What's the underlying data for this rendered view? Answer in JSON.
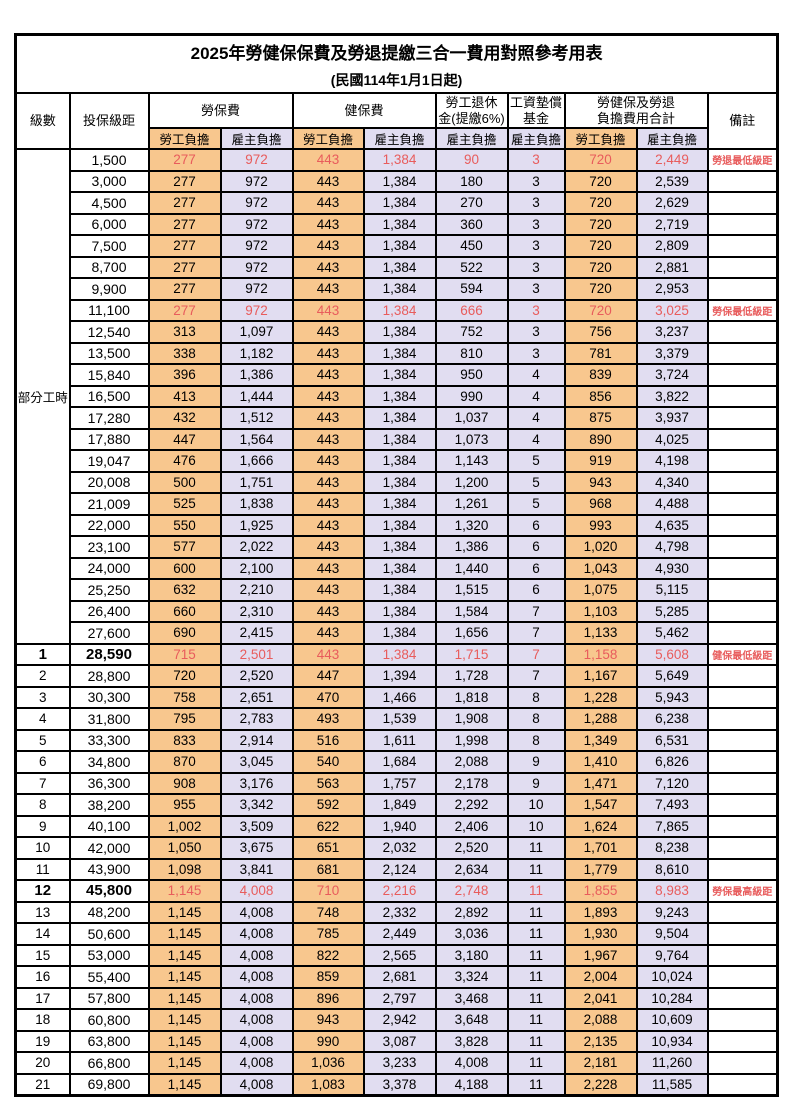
{
  "title": "2025年勞健保保費及勞退提繳三合一費用對照參考用表",
  "subtitle": "(民國114年1月1日起)",
  "colors": {
    "employee_column_bg": "#F8C78E",
    "employer_column_bg": "#E1DDF1",
    "highlight_text": "#E85C5C",
    "remark_text": "#F17577",
    "border": "#000000"
  },
  "header": {
    "level": "級數",
    "bracket": "投保級距",
    "labor_insurance": "勞保費",
    "health_insurance": "健保費",
    "pension_line1": "勞工退休",
    "pension_line2": "金(提繳6%)",
    "wage_fund_line1": "工資墊償",
    "wage_fund_line2": "基金",
    "total_line1": "勞健保及勞退",
    "total_line2": "負擔費用合計",
    "remark": "備註",
    "employee": "勞工負擔",
    "employer": "雇主負擔"
  },
  "part_time": {
    "label": "部分工時",
    "rowspan": 23
  },
  "rows": [
    {
      "bracket": "1,500",
      "values": [
        "277",
        "972",
        "443",
        "1,384",
        "90",
        "3",
        "720",
        "2,449"
      ],
      "remark": "勞退最低級距",
      "highlight": true
    },
    {
      "bracket": "3,000",
      "values": [
        "277",
        "972",
        "443",
        "1,384",
        "180",
        "3",
        "720",
        "2,539"
      ],
      "remark": ""
    },
    {
      "bracket": "4,500",
      "values": [
        "277",
        "972",
        "443",
        "1,384",
        "270",
        "3",
        "720",
        "2,629"
      ],
      "remark": ""
    },
    {
      "bracket": "6,000",
      "values": [
        "277",
        "972",
        "443",
        "1,384",
        "360",
        "3",
        "720",
        "2,719"
      ],
      "remark": ""
    },
    {
      "bracket": "7,500",
      "values": [
        "277",
        "972",
        "443",
        "1,384",
        "450",
        "3",
        "720",
        "2,809"
      ],
      "remark": ""
    },
    {
      "bracket": "8,700",
      "values": [
        "277",
        "972",
        "443",
        "1,384",
        "522",
        "3",
        "720",
        "2,881"
      ],
      "remark": ""
    },
    {
      "bracket": "9,900",
      "values": [
        "277",
        "972",
        "443",
        "1,384",
        "594",
        "3",
        "720",
        "2,953"
      ],
      "remark": ""
    },
    {
      "bracket": "11,100",
      "values": [
        "277",
        "972",
        "443",
        "1,384",
        "666",
        "3",
        "720",
        "3,025"
      ],
      "remark": "勞保最低級距",
      "highlight": true
    },
    {
      "bracket": "12,540",
      "values": [
        "313",
        "1,097",
        "443",
        "1,384",
        "752",
        "3",
        "756",
        "3,237"
      ],
      "remark": ""
    },
    {
      "bracket": "13,500",
      "values": [
        "338",
        "1,182",
        "443",
        "1,384",
        "810",
        "3",
        "781",
        "3,379"
      ],
      "remark": ""
    },
    {
      "bracket": "15,840",
      "values": [
        "396",
        "1,386",
        "443",
        "1,384",
        "950",
        "4",
        "839",
        "3,724"
      ],
      "remark": ""
    },
    {
      "bracket": "16,500",
      "values": [
        "413",
        "1,444",
        "443",
        "1,384",
        "990",
        "4",
        "856",
        "3,822"
      ],
      "remark": ""
    },
    {
      "bracket": "17,280",
      "values": [
        "432",
        "1,512",
        "443",
        "1,384",
        "1,037",
        "4",
        "875",
        "3,937"
      ],
      "remark": ""
    },
    {
      "bracket": "17,880",
      "values": [
        "447",
        "1,564",
        "443",
        "1,384",
        "1,073",
        "4",
        "890",
        "4,025"
      ],
      "remark": ""
    },
    {
      "bracket": "19,047",
      "values": [
        "476",
        "1,666",
        "443",
        "1,384",
        "1,143",
        "5",
        "919",
        "4,198"
      ],
      "remark": ""
    },
    {
      "bracket": "20,008",
      "values": [
        "500",
        "1,751",
        "443",
        "1,384",
        "1,200",
        "5",
        "943",
        "4,340"
      ],
      "remark": ""
    },
    {
      "bracket": "21,009",
      "values": [
        "525",
        "1,838",
        "443",
        "1,384",
        "1,261",
        "5",
        "968",
        "4,488"
      ],
      "remark": ""
    },
    {
      "bracket": "22,000",
      "values": [
        "550",
        "1,925",
        "443",
        "1,384",
        "1,320",
        "6",
        "993",
        "4,635"
      ],
      "remark": ""
    },
    {
      "bracket": "23,100",
      "values": [
        "577",
        "2,022",
        "443",
        "1,384",
        "1,386",
        "6",
        "1,020",
        "4,798"
      ],
      "remark": ""
    },
    {
      "bracket": "24,000",
      "values": [
        "600",
        "2,100",
        "443",
        "1,384",
        "1,440",
        "6",
        "1,043",
        "4,930"
      ],
      "remark": ""
    },
    {
      "bracket": "25,250",
      "values": [
        "632",
        "2,210",
        "443",
        "1,384",
        "1,515",
        "6",
        "1,075",
        "5,115"
      ],
      "remark": ""
    },
    {
      "bracket": "26,400",
      "values": [
        "660",
        "2,310",
        "443",
        "1,384",
        "1,584",
        "7",
        "1,103",
        "5,285"
      ],
      "remark": ""
    },
    {
      "bracket": "27,600",
      "values": [
        "690",
        "2,415",
        "443",
        "1,384",
        "1,656",
        "7",
        "1,133",
        "5,462"
      ],
      "remark": ""
    },
    {
      "level": "1",
      "bracket": "28,590",
      "values": [
        "715",
        "2,501",
        "443",
        "1,384",
        "1,715",
        "7",
        "1,158",
        "5,608"
      ],
      "remark": "健保最低級距",
      "highlight": true,
      "bold": true
    },
    {
      "level": "2",
      "bracket": "28,800",
      "values": [
        "720",
        "2,520",
        "447",
        "1,394",
        "1,728",
        "7",
        "1,167",
        "5,649"
      ],
      "remark": ""
    },
    {
      "level": "3",
      "bracket": "30,300",
      "values": [
        "758",
        "2,651",
        "470",
        "1,466",
        "1,818",
        "8",
        "1,228",
        "5,943"
      ],
      "remark": ""
    },
    {
      "level": "4",
      "bracket": "31,800",
      "values": [
        "795",
        "2,783",
        "493",
        "1,539",
        "1,908",
        "8",
        "1,288",
        "6,238"
      ],
      "remark": ""
    },
    {
      "level": "5",
      "bracket": "33,300",
      "values": [
        "833",
        "2,914",
        "516",
        "1,611",
        "1,998",
        "8",
        "1,349",
        "6,531"
      ],
      "remark": ""
    },
    {
      "level": "6",
      "bracket": "34,800",
      "values": [
        "870",
        "3,045",
        "540",
        "1,684",
        "2,088",
        "9",
        "1,410",
        "6,826"
      ],
      "remark": ""
    },
    {
      "level": "7",
      "bracket": "36,300",
      "values": [
        "908",
        "3,176",
        "563",
        "1,757",
        "2,178",
        "9",
        "1,471",
        "7,120"
      ],
      "remark": ""
    },
    {
      "level": "8",
      "bracket": "38,200",
      "values": [
        "955",
        "3,342",
        "592",
        "1,849",
        "2,292",
        "10",
        "1,547",
        "7,493"
      ],
      "remark": ""
    },
    {
      "level": "9",
      "bracket": "40,100",
      "values": [
        "1,002",
        "3,509",
        "622",
        "1,940",
        "2,406",
        "10",
        "1,624",
        "7,865"
      ],
      "remark": ""
    },
    {
      "level": "10",
      "bracket": "42,000",
      "values": [
        "1,050",
        "3,675",
        "651",
        "2,032",
        "2,520",
        "11",
        "1,701",
        "8,238"
      ],
      "remark": ""
    },
    {
      "level": "11",
      "bracket": "43,900",
      "values": [
        "1,098",
        "3,841",
        "681",
        "2,124",
        "2,634",
        "11",
        "1,779",
        "8,610"
      ],
      "remark": ""
    },
    {
      "level": "12",
      "bracket": "45,800",
      "values": [
        "1,145",
        "4,008",
        "710",
        "2,216",
        "2,748",
        "11",
        "1,855",
        "8,983"
      ],
      "remark": "勞保最高級距",
      "highlight": true,
      "bold": true
    },
    {
      "level": "13",
      "bracket": "48,200",
      "values": [
        "1,145",
        "4,008",
        "748",
        "2,332",
        "2,892",
        "11",
        "1,893",
        "9,243"
      ],
      "remark": ""
    },
    {
      "level": "14",
      "bracket": "50,600",
      "values": [
        "1,145",
        "4,008",
        "785",
        "2,449",
        "3,036",
        "11",
        "1,930",
        "9,504"
      ],
      "remark": ""
    },
    {
      "level": "15",
      "bracket": "53,000",
      "values": [
        "1,145",
        "4,008",
        "822",
        "2,565",
        "3,180",
        "11",
        "1,967",
        "9,764"
      ],
      "remark": ""
    },
    {
      "level": "16",
      "bracket": "55,400",
      "values": [
        "1,145",
        "4,008",
        "859",
        "2,681",
        "3,324",
        "11",
        "2,004",
        "10,024"
      ],
      "remark": ""
    },
    {
      "level": "17",
      "bracket": "57,800",
      "values": [
        "1,145",
        "4,008",
        "896",
        "2,797",
        "3,468",
        "11",
        "2,041",
        "10,284"
      ],
      "remark": ""
    },
    {
      "level": "18",
      "bracket": "60,800",
      "values": [
        "1,145",
        "4,008",
        "943",
        "2,942",
        "3,648",
        "11",
        "2,088",
        "10,609"
      ],
      "remark": ""
    },
    {
      "level": "19",
      "bracket": "63,800",
      "values": [
        "1,145",
        "4,008",
        "990",
        "3,087",
        "3,828",
        "11",
        "2,135",
        "10,934"
      ],
      "remark": ""
    },
    {
      "level": "20",
      "bracket": "66,800",
      "values": [
        "1,145",
        "4,008",
        "1,036",
        "3,233",
        "4,008",
        "11",
        "2,181",
        "11,260"
      ],
      "remark": ""
    },
    {
      "level": "21",
      "bracket": "69,800",
      "values": [
        "1,145",
        "4,008",
        "1,083",
        "3,378",
        "4,188",
        "11",
        "2,228",
        "11,585"
      ],
      "remark": ""
    }
  ]
}
